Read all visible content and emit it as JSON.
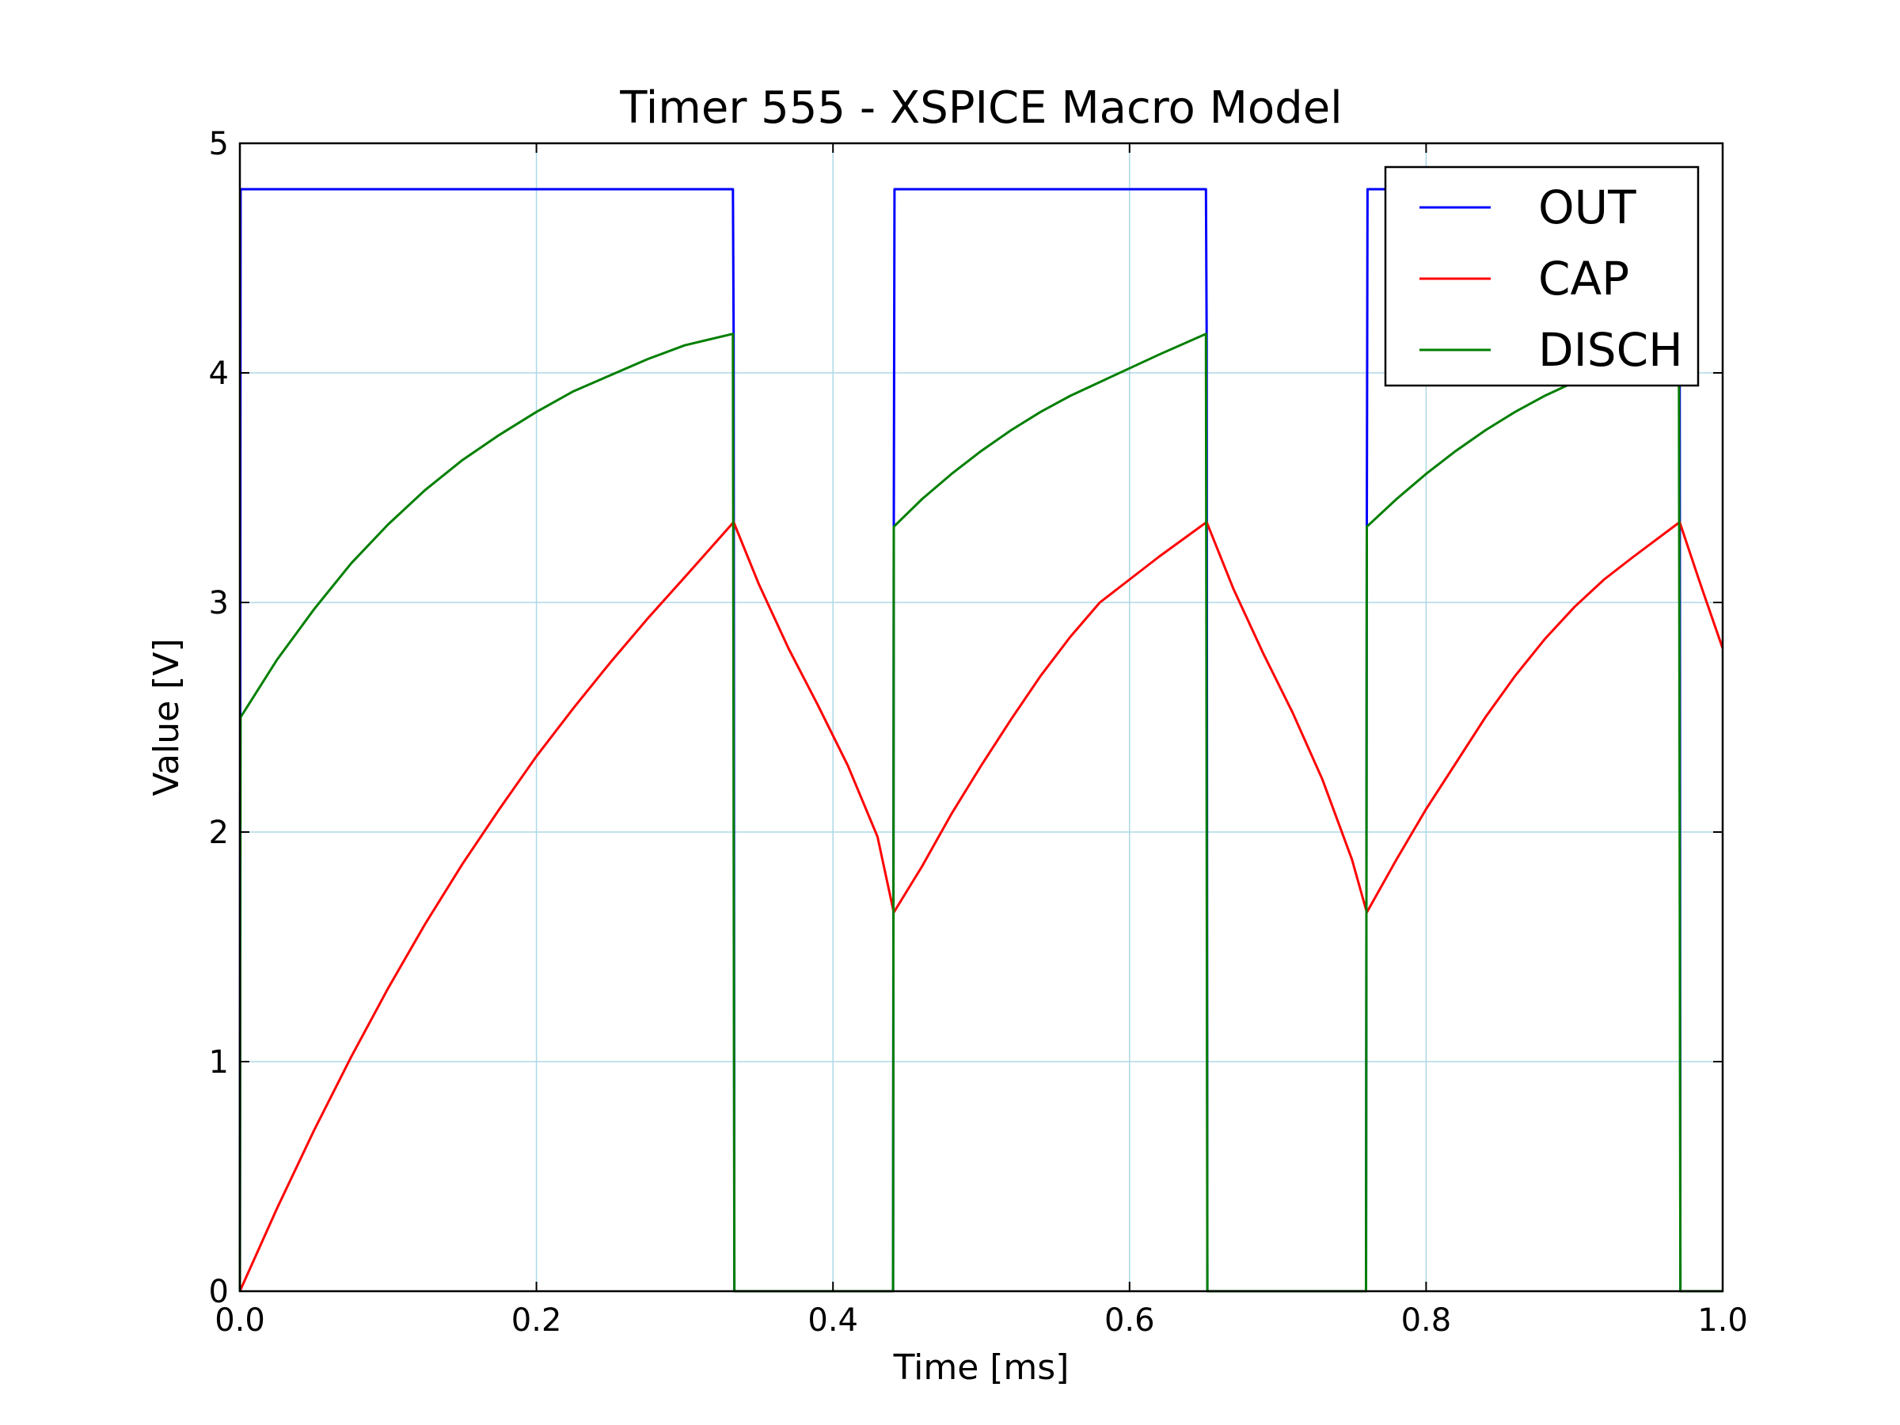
{
  "chart_data": {
    "type": "line",
    "title": "Timer 555 - XSPICE Macro Model",
    "xlabel": "Time  [ms]",
    "ylabel": "Value [V]",
    "xlim": [
      0.0,
      1.0
    ],
    "ylim": [
      0,
      5
    ],
    "grid": true,
    "legend_position": "top-right",
    "x_ticks": [
      "0.0",
      "0.2",
      "0.4",
      "0.6",
      "0.8",
      "1.0"
    ],
    "y_ticks": [
      "0",
      "1",
      "2",
      "3",
      "4",
      "5"
    ],
    "series": [
      {
        "name": "OUT",
        "color": "#0000ff",
        "points": [
          [
            0.0,
            0.0
          ],
          [
            0.0005,
            4.8
          ],
          [
            0.3325,
            4.8
          ],
          [
            0.333,
            4.17
          ],
          [
            0.3335,
            0.0
          ],
          [
            0.4405,
            0.0
          ],
          [
            0.441,
            3.33
          ],
          [
            0.4415,
            4.8
          ],
          [
            0.6515,
            4.8
          ],
          [
            0.652,
            4.17
          ],
          [
            0.6525,
            0.0
          ],
          [
            0.7595,
            0.0
          ],
          [
            0.76,
            3.33
          ],
          [
            0.7605,
            4.8
          ],
          [
            0.9705,
            4.8
          ],
          [
            0.971,
            4.17
          ],
          [
            0.9715,
            0.0
          ],
          [
            1.0,
            0.0
          ]
        ]
      },
      {
        "name": "CAP",
        "color": "#ff0000",
        "points": [
          [
            0.0,
            0.0
          ],
          [
            0.025,
            0.36
          ],
          [
            0.05,
            0.7
          ],
          [
            0.075,
            1.02
          ],
          [
            0.1,
            1.32
          ],
          [
            0.125,
            1.6
          ],
          [
            0.15,
            1.86
          ],
          [
            0.175,
            2.1
          ],
          [
            0.2,
            2.33
          ],
          [
            0.225,
            2.54
          ],
          [
            0.25,
            2.74
          ],
          [
            0.275,
            2.93
          ],
          [
            0.3,
            3.11
          ],
          [
            0.333,
            3.35
          ],
          [
            0.35,
            3.08
          ],
          [
            0.37,
            2.8
          ],
          [
            0.39,
            2.55
          ],
          [
            0.41,
            2.29
          ],
          [
            0.43,
            1.98
          ],
          [
            0.441,
            1.65
          ],
          [
            0.46,
            1.85
          ],
          [
            0.48,
            2.08
          ],
          [
            0.5,
            2.29
          ],
          [
            0.52,
            2.49
          ],
          [
            0.54,
            2.68
          ],
          [
            0.56,
            2.85
          ],
          [
            0.58,
            3.0
          ],
          [
            0.6,
            3.1
          ],
          [
            0.62,
            3.2
          ],
          [
            0.652,
            3.35
          ],
          [
            0.67,
            3.06
          ],
          [
            0.69,
            2.78
          ],
          [
            0.71,
            2.52
          ],
          [
            0.73,
            2.23
          ],
          [
            0.75,
            1.88
          ],
          [
            0.76,
            1.65
          ],
          [
            0.78,
            1.88
          ],
          [
            0.8,
            2.1
          ],
          [
            0.82,
            2.3
          ],
          [
            0.84,
            2.5
          ],
          [
            0.86,
            2.68
          ],
          [
            0.88,
            2.84
          ],
          [
            0.9,
            2.98
          ],
          [
            0.92,
            3.1
          ],
          [
            0.94,
            3.2
          ],
          [
            0.971,
            3.35
          ],
          [
            0.985,
            3.08
          ],
          [
            1.0,
            2.8
          ]
        ]
      },
      {
        "name": "DISCH",
        "color": "#007f00",
        "points": [
          [
            0.0,
            0.0
          ],
          [
            0.0005,
            2.5
          ],
          [
            0.025,
            2.75
          ],
          [
            0.05,
            2.97
          ],
          [
            0.075,
            3.17
          ],
          [
            0.1,
            3.34
          ],
          [
            0.125,
            3.49
          ],
          [
            0.15,
            3.62
          ],
          [
            0.175,
            3.73
          ],
          [
            0.2,
            3.83
          ],
          [
            0.225,
            3.92
          ],
          [
            0.25,
            3.99
          ],
          [
            0.275,
            4.06
          ],
          [
            0.3,
            4.12
          ],
          [
            0.3325,
            4.17
          ],
          [
            0.3335,
            0.0
          ],
          [
            0.4405,
            0.0
          ],
          [
            0.441,
            3.33
          ],
          [
            0.46,
            3.45
          ],
          [
            0.48,
            3.56
          ],
          [
            0.5,
            3.66
          ],
          [
            0.52,
            3.75
          ],
          [
            0.54,
            3.83
          ],
          [
            0.56,
            3.9
          ],
          [
            0.58,
            3.96
          ],
          [
            0.6,
            4.02
          ],
          [
            0.62,
            4.08
          ],
          [
            0.6515,
            4.17
          ],
          [
            0.6525,
            0.0
          ],
          [
            0.7595,
            0.0
          ],
          [
            0.76,
            3.33
          ],
          [
            0.78,
            3.45
          ],
          [
            0.8,
            3.56
          ],
          [
            0.82,
            3.66
          ],
          [
            0.84,
            3.75
          ],
          [
            0.86,
            3.83
          ],
          [
            0.88,
            3.9
          ],
          [
            0.9,
            3.96
          ],
          [
            0.92,
            4.02
          ],
          [
            0.94,
            4.08
          ],
          [
            0.9705,
            4.17
          ],
          [
            0.9715,
            0.0
          ],
          [
            1.0,
            0.0
          ]
        ]
      }
    ]
  }
}
